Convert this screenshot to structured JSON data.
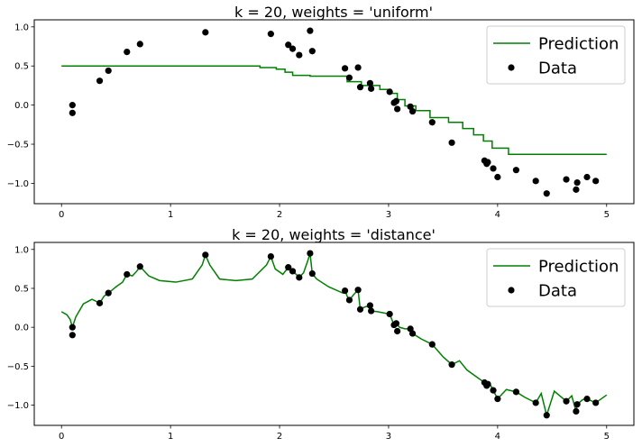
{
  "chart_data": [
    {
      "type": "line",
      "title": "k = 20, weights = 'uniform'",
      "xlabel": "",
      "ylabel": "",
      "xlim": [
        -0.25,
        5.25
      ],
      "ylim": [
        -1.26,
        1.09
      ],
      "xticks": [
        0,
        1,
        2,
        3,
        4,
        5
      ],
      "yticks": [
        -1.0,
        -0.5,
        0.0,
        0.5,
        1.0
      ],
      "xtick_labels": [
        "0",
        "1",
        "2",
        "3",
        "4",
        "5"
      ],
      "ytick_labels": [
        "−1.0",
        "−0.5",
        "0.0",
        "0.5",
        "1.0"
      ],
      "legend": {
        "position": "upper right",
        "entries": [
          "Prediction",
          "Data"
        ]
      },
      "series": [
        {
          "name": "Prediction",
          "kind": "step-line",
          "color": "#008000",
          "x": [
            0.0,
            1.68,
            1.82,
            1.97,
            2.05,
            2.12,
            2.28,
            2.62,
            2.75,
            2.92,
            3.02,
            3.08,
            3.15,
            3.25,
            3.38,
            3.55,
            3.68,
            3.78,
            3.87,
            3.95,
            4.1,
            5.0
          ],
          "y": [
            0.5,
            0.5,
            0.48,
            0.46,
            0.42,
            0.38,
            0.37,
            0.3,
            0.25,
            0.2,
            0.15,
            0.07,
            -0.01,
            -0.07,
            -0.16,
            -0.22,
            -0.3,
            -0.38,
            -0.46,
            -0.55,
            -0.63,
            -0.63
          ]
        },
        {
          "name": "Data",
          "kind": "scatter",
          "color": "#000000",
          "x": [
            0.1,
            0.1,
            0.35,
            0.43,
            0.6,
            0.72,
            1.32,
            1.92,
            2.08,
            2.12,
            2.18,
            2.28,
            2.3,
            2.6,
            2.64,
            2.72,
            2.74,
            2.83,
            2.84,
            3.01,
            3.05,
            3.07,
            3.08,
            3.2,
            3.22,
            3.4,
            3.58,
            3.88,
            3.9,
            3.91,
            3.96,
            4.0,
            4.17,
            4.35,
            4.45,
            4.63,
            4.72,
            4.73,
            4.82,
            4.9
          ],
          "y": [
            0.0,
            -0.1,
            0.31,
            0.44,
            0.68,
            0.78,
            0.93,
            0.91,
            0.77,
            0.72,
            0.64,
            0.95,
            0.69,
            0.47,
            0.35,
            0.48,
            0.23,
            0.28,
            0.21,
            0.17,
            0.03,
            0.05,
            -0.05,
            -0.02,
            -0.08,
            -0.22,
            -0.48,
            -0.71,
            -0.75,
            -0.73,
            -0.81,
            -0.92,
            -0.83,
            -0.97,
            -1.13,
            -0.95,
            -1.08,
            -0.99,
            -0.92,
            -0.97
          ]
        }
      ]
    },
    {
      "type": "line",
      "title": "k = 20, weights = 'distance'",
      "xlabel": "",
      "ylabel": "",
      "xlim": [
        -0.25,
        5.25
      ],
      "ylim": [
        -1.26,
        1.09
      ],
      "xticks": [
        0,
        1,
        2,
        3,
        4,
        5
      ],
      "yticks": [
        -1.0,
        -0.5,
        0.0,
        0.5,
        1.0
      ],
      "xtick_labels": [
        "0",
        "1",
        "2",
        "3",
        "4",
        "5"
      ],
      "ytick_labels": [
        "−1.0",
        "−0.5",
        "0.0",
        "0.5",
        "1.0"
      ],
      "legend": {
        "position": "upper right",
        "entries": [
          "Prediction",
          "Data"
        ]
      },
      "series": [
        {
          "name": "Prediction",
          "kind": "line",
          "color": "#008000",
          "x": [
            0.0,
            0.05,
            0.08,
            0.1,
            0.13,
            0.2,
            0.28,
            0.35,
            0.39,
            0.43,
            0.5,
            0.56,
            0.6,
            0.65,
            0.69,
            0.72,
            0.8,
            0.9,
            1.05,
            1.2,
            1.29,
            1.32,
            1.36,
            1.45,
            1.6,
            1.75,
            1.88,
            1.92,
            1.96,
            2.03,
            2.08,
            2.12,
            2.16,
            2.18,
            2.22,
            2.26,
            2.28,
            2.3,
            2.34,
            2.45,
            2.58,
            2.6,
            2.62,
            2.64,
            2.68,
            2.72,
            2.74,
            2.78,
            2.83,
            2.84,
            2.9,
            3.01,
            3.05,
            3.07,
            3.1,
            3.15,
            3.2,
            3.22,
            3.3,
            3.4,
            3.5,
            3.58,
            3.65,
            3.72,
            3.8,
            3.88,
            3.9,
            3.93,
            3.96,
            4.0,
            4.08,
            4.17,
            4.25,
            4.35,
            4.4,
            4.45,
            4.52,
            4.63,
            4.68,
            4.72,
            4.73,
            4.78,
            4.82,
            4.9,
            5.0
          ],
          "y": [
            0.2,
            0.16,
            0.1,
            0.0,
            0.13,
            0.3,
            0.36,
            0.31,
            0.4,
            0.44,
            0.52,
            0.58,
            0.68,
            0.66,
            0.72,
            0.78,
            0.66,
            0.6,
            0.58,
            0.62,
            0.8,
            0.93,
            0.8,
            0.62,
            0.6,
            0.62,
            0.8,
            0.91,
            0.75,
            0.68,
            0.77,
            0.72,
            0.67,
            0.64,
            0.7,
            0.86,
            0.95,
            0.69,
            0.62,
            0.52,
            0.44,
            0.47,
            0.4,
            0.35,
            0.42,
            0.48,
            0.23,
            0.26,
            0.28,
            0.21,
            0.2,
            0.17,
            0.03,
            0.05,
            0.0,
            -0.02,
            -0.02,
            -0.08,
            -0.15,
            -0.22,
            -0.38,
            -0.48,
            -0.43,
            -0.55,
            -0.63,
            -0.71,
            -0.75,
            -0.73,
            -0.81,
            -0.92,
            -0.8,
            -0.83,
            -0.9,
            -0.97,
            -0.85,
            -1.13,
            -0.82,
            -0.95,
            -0.88,
            -1.08,
            -0.99,
            -0.93,
            -0.92,
            -0.97,
            -0.87
          ]
        },
        {
          "name": "Data",
          "kind": "scatter",
          "color": "#000000",
          "x": [
            0.1,
            0.1,
            0.35,
            0.43,
            0.6,
            0.72,
            1.32,
            1.92,
            2.08,
            2.12,
            2.18,
            2.28,
            2.3,
            2.6,
            2.64,
            2.72,
            2.74,
            2.83,
            2.84,
            3.01,
            3.05,
            3.07,
            3.08,
            3.2,
            3.22,
            3.4,
            3.58,
            3.88,
            3.9,
            3.91,
            3.96,
            4.0,
            4.17,
            4.35,
            4.45,
            4.63,
            4.72,
            4.73,
            4.82,
            4.9
          ],
          "y": [
            0.0,
            -0.1,
            0.31,
            0.44,
            0.68,
            0.78,
            0.93,
            0.91,
            0.77,
            0.72,
            0.64,
            0.95,
            0.69,
            0.47,
            0.35,
            0.48,
            0.23,
            0.28,
            0.21,
            0.17,
            0.03,
            0.05,
            -0.05,
            -0.02,
            -0.08,
            -0.22,
            -0.48,
            -0.71,
            -0.75,
            -0.73,
            -0.81,
            -0.92,
            -0.83,
            -0.97,
            -1.13,
            -0.95,
            -1.08,
            -0.99,
            -0.92,
            -0.97
          ]
        }
      ]
    }
  ]
}
